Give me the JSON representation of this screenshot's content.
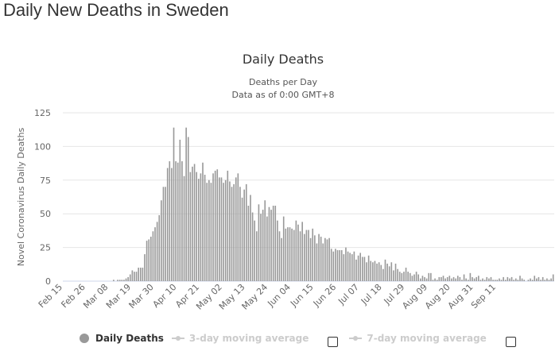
{
  "page": {
    "title": "Daily New Deaths in Sweden"
  },
  "chart_data": {
    "type": "bar",
    "title": "Daily Deaths",
    "subtitle_line1": "Deaths per Day",
    "subtitle_line2": "Data as of 0:00 GMT+8",
    "ylabel": "Novel Coronavirus Daily Deaths",
    "xlabel": "",
    "ylim": [
      0,
      125
    ],
    "yticks": [
      0,
      25,
      50,
      75,
      100,
      125
    ],
    "ytick_labels": [
      "0",
      "25",
      "50",
      "75",
      "100",
      "125"
    ],
    "x_tick_labels": [
      "Feb 15",
      "Feb 26",
      "Mar 08",
      "Mar 19",
      "Mar 30",
      "Apr 10",
      "Apr 21",
      "May 02",
      "May 13",
      "May 24",
      "Jun 04",
      "Jun 15",
      "Jun 26",
      "Jul 07",
      "Jul 18",
      "Jul 29",
      "Aug 09",
      "Aug 20",
      "Aug 31",
      "Sep 11"
    ],
    "x_tick_interval_days": 11,
    "start_date": "Feb 15",
    "grid": true,
    "bar_color": "#999999",
    "series": [
      {
        "name": "Daily Deaths",
        "values": [
          0,
          0,
          0,
          0,
          0,
          0,
          0,
          0,
          0,
          0,
          0,
          0,
          0,
          0,
          0,
          0,
          0,
          0,
          0,
          0,
          0,
          0,
          0,
          0,
          1,
          0,
          1,
          1,
          1,
          1,
          2,
          3,
          5,
          8,
          7,
          7,
          10,
          10,
          10,
          20,
          30,
          31,
          33,
          37,
          40,
          44,
          49,
          60,
          70,
          70,
          84,
          89,
          84,
          114,
          89,
          88,
          105,
          89,
          78,
          114,
          107,
          81,
          85,
          87,
          81,
          76,
          80,
          88,
          79,
          73,
          75,
          73,
          80,
          82,
          83,
          77,
          77,
          73,
          75,
          82,
          74,
          70,
          72,
          77,
          80,
          70,
          62,
          68,
          72,
          56,
          64,
          51,
          45,
          37,
          57,
          50,
          53,
          60,
          48,
          55,
          53,
          56,
          56,
          45,
          37,
          32,
          48,
          39,
          40,
          40,
          39,
          38,
          45,
          42,
          37,
          44,
          35,
          38,
          38,
          32,
          39,
          34,
          28,
          35,
          33,
          28,
          32,
          31,
          32,
          24,
          22,
          24,
          23,
          23,
          23,
          20,
          25,
          22,
          21,
          20,
          22,
          16,
          19,
          21,
          18,
          18,
          14,
          19,
          15,
          14,
          15,
          13,
          14,
          12,
          9,
          16,
          13,
          11,
          14,
          8,
          13,
          9,
          7,
          6,
          7,
          10,
          7,
          6,
          4,
          5,
          7,
          5,
          2,
          4,
          3,
          2,
          6,
          6,
          1,
          2,
          1,
          3,
          3,
          4,
          2,
          3,
          4,
          2,
          3,
          2,
          4,
          3,
          1,
          5,
          2,
          1,
          6,
          3,
          2,
          3,
          4,
          1,
          2,
          1,
          3,
          2,
          3,
          1,
          1,
          1,
          2,
          1,
          3,
          1,
          3,
          2,
          3,
          1,
          2,
          1,
          4,
          2,
          1,
          0,
          1,
          2,
          1,
          4,
          2,
          3,
          1,
          3,
          1,
          2,
          1,
          2,
          5
        ]
      }
    ],
    "legend": {
      "items": [
        {
          "label": "Daily Deaths",
          "active": true
        },
        {
          "label": "3-day moving average",
          "active": false
        },
        {
          "label": "7-day moving average",
          "active": false
        }
      ],
      "placement": "bottom"
    }
  }
}
